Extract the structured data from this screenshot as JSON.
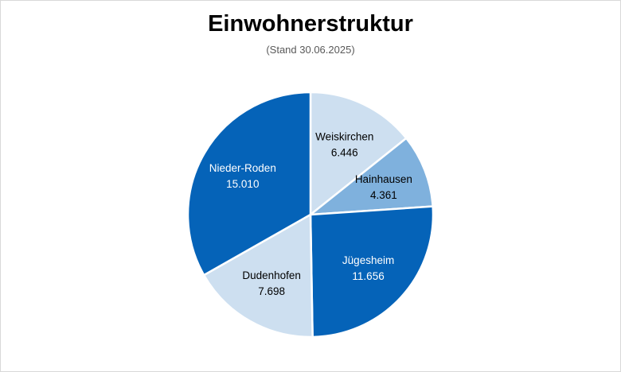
{
  "chart_data": {
    "type": "pie",
    "title": "Einwohnerstruktur",
    "subtitle": "(Stand 30.06.2025)",
    "categories": [
      "Weiskirchen",
      "Hainhausen",
      "Jügesheim",
      "Dudenhofen",
      "Nieder-Roden"
    ],
    "values": [
      6446,
      4361,
      11656,
      7698,
      15010
    ],
    "value_labels": [
      "6.446",
      "4.361",
      "11.656",
      "7.698",
      "15.010"
    ],
    "colors": [
      "#cddff0",
      "#7fb1dd",
      "#0563b8",
      "#cddff0",
      "#0563b8"
    ],
    "label_colors": [
      "#000000",
      "#000000",
      "#ffffff",
      "#000000",
      "#ffffff"
    ],
    "start": "12 o'clock, clockwise",
    "legend": "none (data labels inside slices)"
  }
}
